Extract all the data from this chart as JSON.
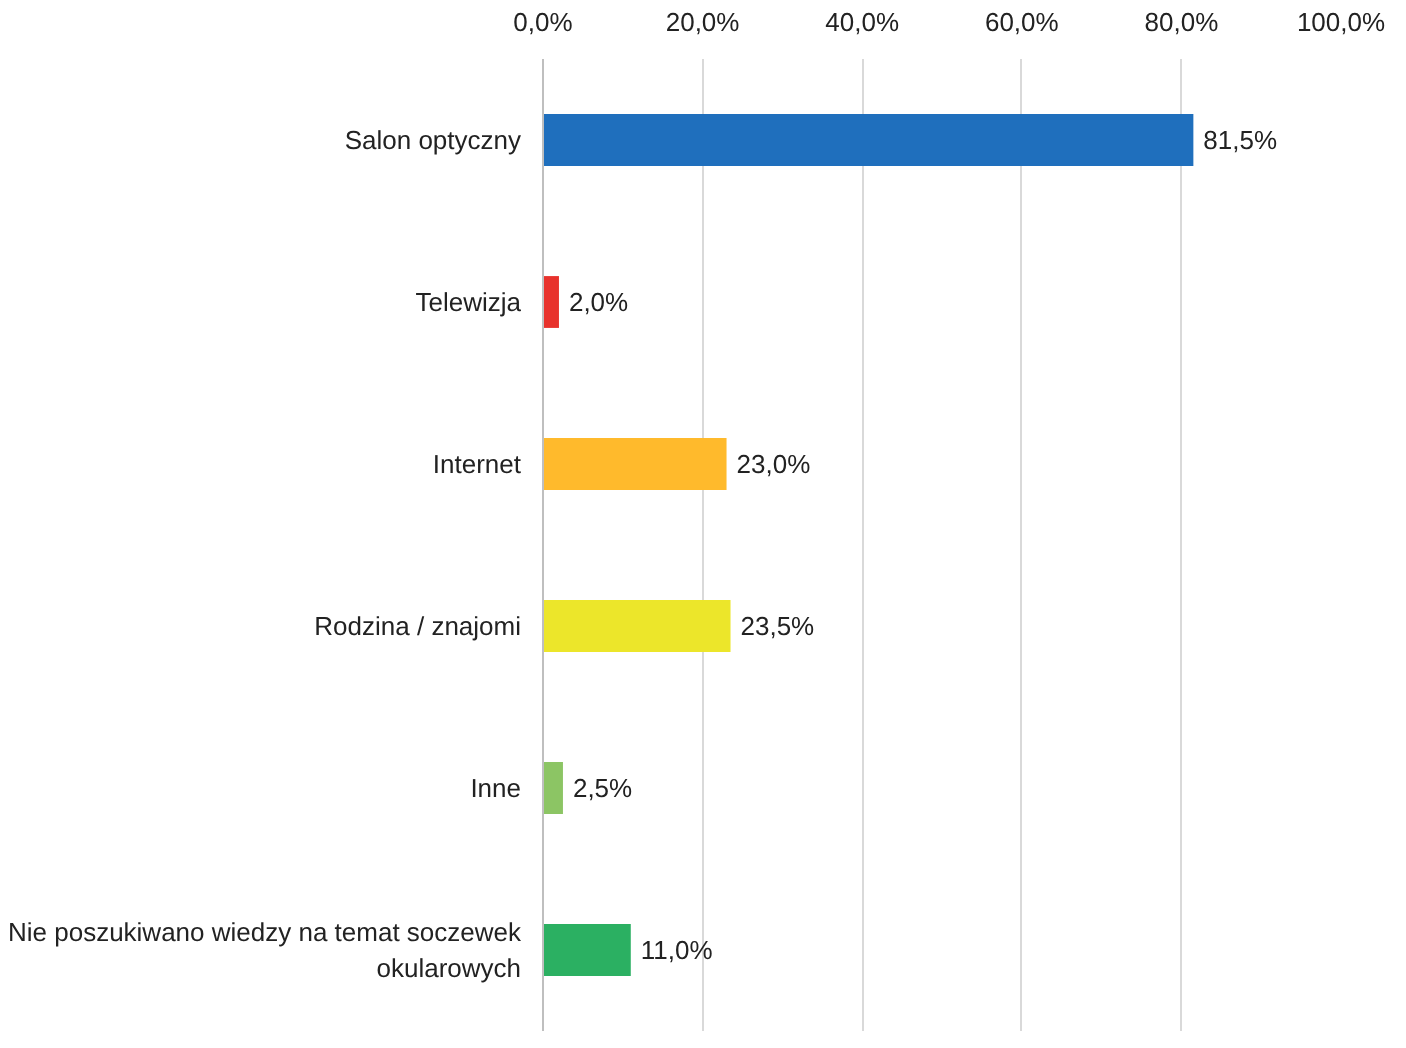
{
  "chart_data": {
    "type": "bar",
    "orientation": "horizontal",
    "categories": [
      "Salon optyczny",
      "Telewizja",
      "Internet",
      "Rodzina / znajomi",
      "Inne",
      "Nie poszukiwano wiedzy na temat soczewek\nokularowych"
    ],
    "values": [
      81.5,
      2.0,
      23.0,
      23.5,
      2.5,
      11.0
    ],
    "colors": [
      "#1f6fbd",
      "#e8322c",
      "#ffba2c",
      "#ece62a",
      "#8cc564",
      "#2bb062"
    ],
    "value_labels": [
      "81,5%",
      "2,0%",
      "23,0%",
      "23,5%",
      "2,5%",
      "11,0%"
    ],
    "xlim": [
      0,
      100
    ],
    "xticks": [
      {
        "value": 0,
        "label": "0,0%"
      },
      {
        "value": 20,
        "label": "20,0%"
      },
      {
        "value": 40,
        "label": "40,0%"
      },
      {
        "value": 60,
        "label": "60,0%"
      },
      {
        "value": 80,
        "label": "80,0%"
      },
      {
        "value": 100,
        "label": "100,0%"
      }
    ],
    "grid": "x"
  }
}
